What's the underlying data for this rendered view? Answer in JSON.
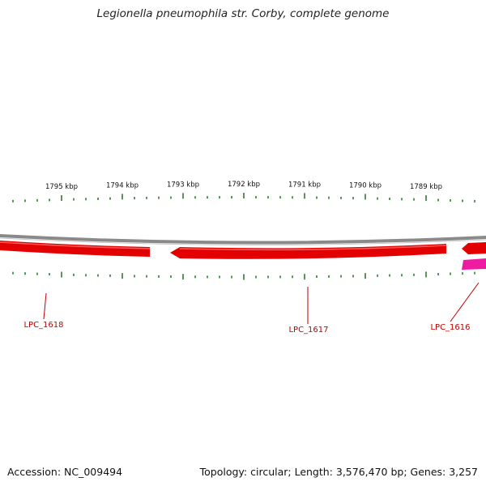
{
  "title": "Legionella pneumophila str. Corby, complete genome",
  "accession_text": "Accession: NC_009494",
  "summary_text": "Topology: circular; Length: 3,576,470 bp; Genes: 3,257",
  "colors": {
    "tick": "#2e7d2e",
    "backbone": "#8a8a8a",
    "gene_cds": "#e30000",
    "gene_other": "#ee1ca0",
    "gene_label": "#c00000"
  },
  "scale": {
    "unit": "kbp",
    "major_ticks": [
      {
        "kbp": 1795,
        "label": "1795 kbp"
      },
      {
        "kbp": 1794,
        "label": "1794 kbp"
      },
      {
        "kbp": 1793,
        "label": "1793 kbp"
      },
      {
        "kbp": 1792,
        "label": "1792 kbp"
      },
      {
        "kbp": 1791,
        "label": "1791 kbp"
      },
      {
        "kbp": 1790,
        "label": "1790 kbp"
      },
      {
        "kbp": 1789,
        "label": "1789 kbp"
      }
    ],
    "minor_ticks_per_kbp": 5
  },
  "genes": [
    {
      "label": "LPC_1618",
      "strand": "reverse",
      "type": "CDS"
    },
    {
      "label": "LPC_1617",
      "strand": "reverse",
      "type": "CDS"
    },
    {
      "label": "LPC_1616",
      "strand": "reverse",
      "type": "CDS"
    }
  ],
  "features": [
    {
      "name": "LPC_1618-arrow",
      "type": "CDS"
    },
    {
      "name": "LPC_1617-arrow",
      "type": "CDS"
    },
    {
      "name": "LPC_1616-arrow",
      "type": "CDS"
    },
    {
      "name": "other-feature",
      "type": "other"
    }
  ]
}
